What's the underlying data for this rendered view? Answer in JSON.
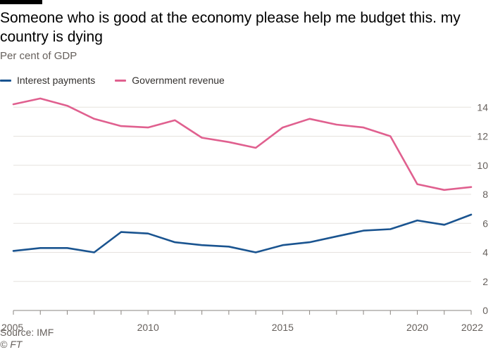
{
  "header": {
    "title": "Someone who is good at the economy please help me budget this. my country is dying",
    "subtitle": "Per cent of GDP"
  },
  "footer": {
    "source": "Source: IMF",
    "credit": "© FT"
  },
  "colors": {
    "interest": "#1a5490",
    "revenue": "#e0608f",
    "grid": "#e6e2de",
    "axis": "#8a8580"
  },
  "chart_data": {
    "type": "line",
    "title": "Someone who is good at the economy please help me budget this. my country is dying",
    "subtitle": "Per cent of GDP",
    "x": [
      2005,
      2006,
      2007,
      2008,
      2009,
      2010,
      2011,
      2012,
      2013,
      2014,
      2015,
      2016,
      2017,
      2018,
      2019,
      2020,
      2021,
      2022
    ],
    "x_tick_labels": [
      "2005",
      "2010",
      "2015",
      "2020",
      "2022"
    ],
    "x_ticks": [
      2005,
      2010,
      2015,
      2020,
      2022
    ],
    "series": [
      {
        "name": "Interest payments",
        "color": "#1a5490",
        "values": [
          4.1,
          4.3,
          4.3,
          4.0,
          5.4,
          5.3,
          4.7,
          4.5,
          4.4,
          4.0,
          4.5,
          4.7,
          5.1,
          5.5,
          5.6,
          6.2,
          5.9,
          6.6
        ]
      },
      {
        "name": "Government revenue",
        "color": "#e0608f",
        "values": [
          14.2,
          14.6,
          14.1,
          13.2,
          12.7,
          12.6,
          13.1,
          11.9,
          11.6,
          11.2,
          12.6,
          13.2,
          12.8,
          12.6,
          12.0,
          8.7,
          8.3,
          8.5
        ]
      }
    ],
    "yticks": [
      0,
      2,
      4,
      6,
      8,
      10,
      12,
      14
    ],
    "ylim": [
      0,
      15
    ],
    "xlim": [
      2005,
      2022
    ],
    "grid": true,
    "legend_position": "top-left",
    "y_axis_side": "right"
  }
}
